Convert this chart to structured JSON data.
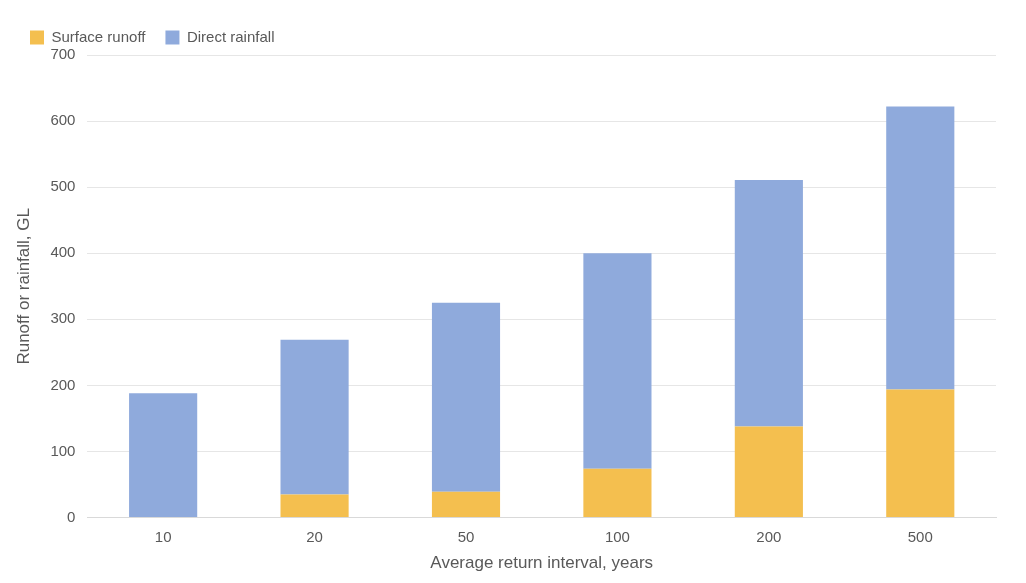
{
  "chart_data": {
    "type": "bar",
    "stacked": true,
    "xlabel": "Average return interval, years",
    "ylabel": "Runoff or rainfall, GL",
    "categories": [
      "10",
      "20",
      "50",
      "100",
      "200",
      "500"
    ],
    "series": [
      {
        "name": "Surface runoff",
        "color": "#f4bf4f",
        "values": [
          0,
          35,
          39,
          74,
          138,
          194
        ]
      },
      {
        "name": "Direct rainfall",
        "color": "#8faadc",
        "values": [
          188,
          234,
          286,
          326,
          373,
          428
        ]
      }
    ],
    "ylim": [
      0,
      700
    ],
    "yticks": [
      0,
      100,
      200,
      300,
      400,
      500,
      600,
      700
    ],
    "grid": "y",
    "legend": "top"
  }
}
